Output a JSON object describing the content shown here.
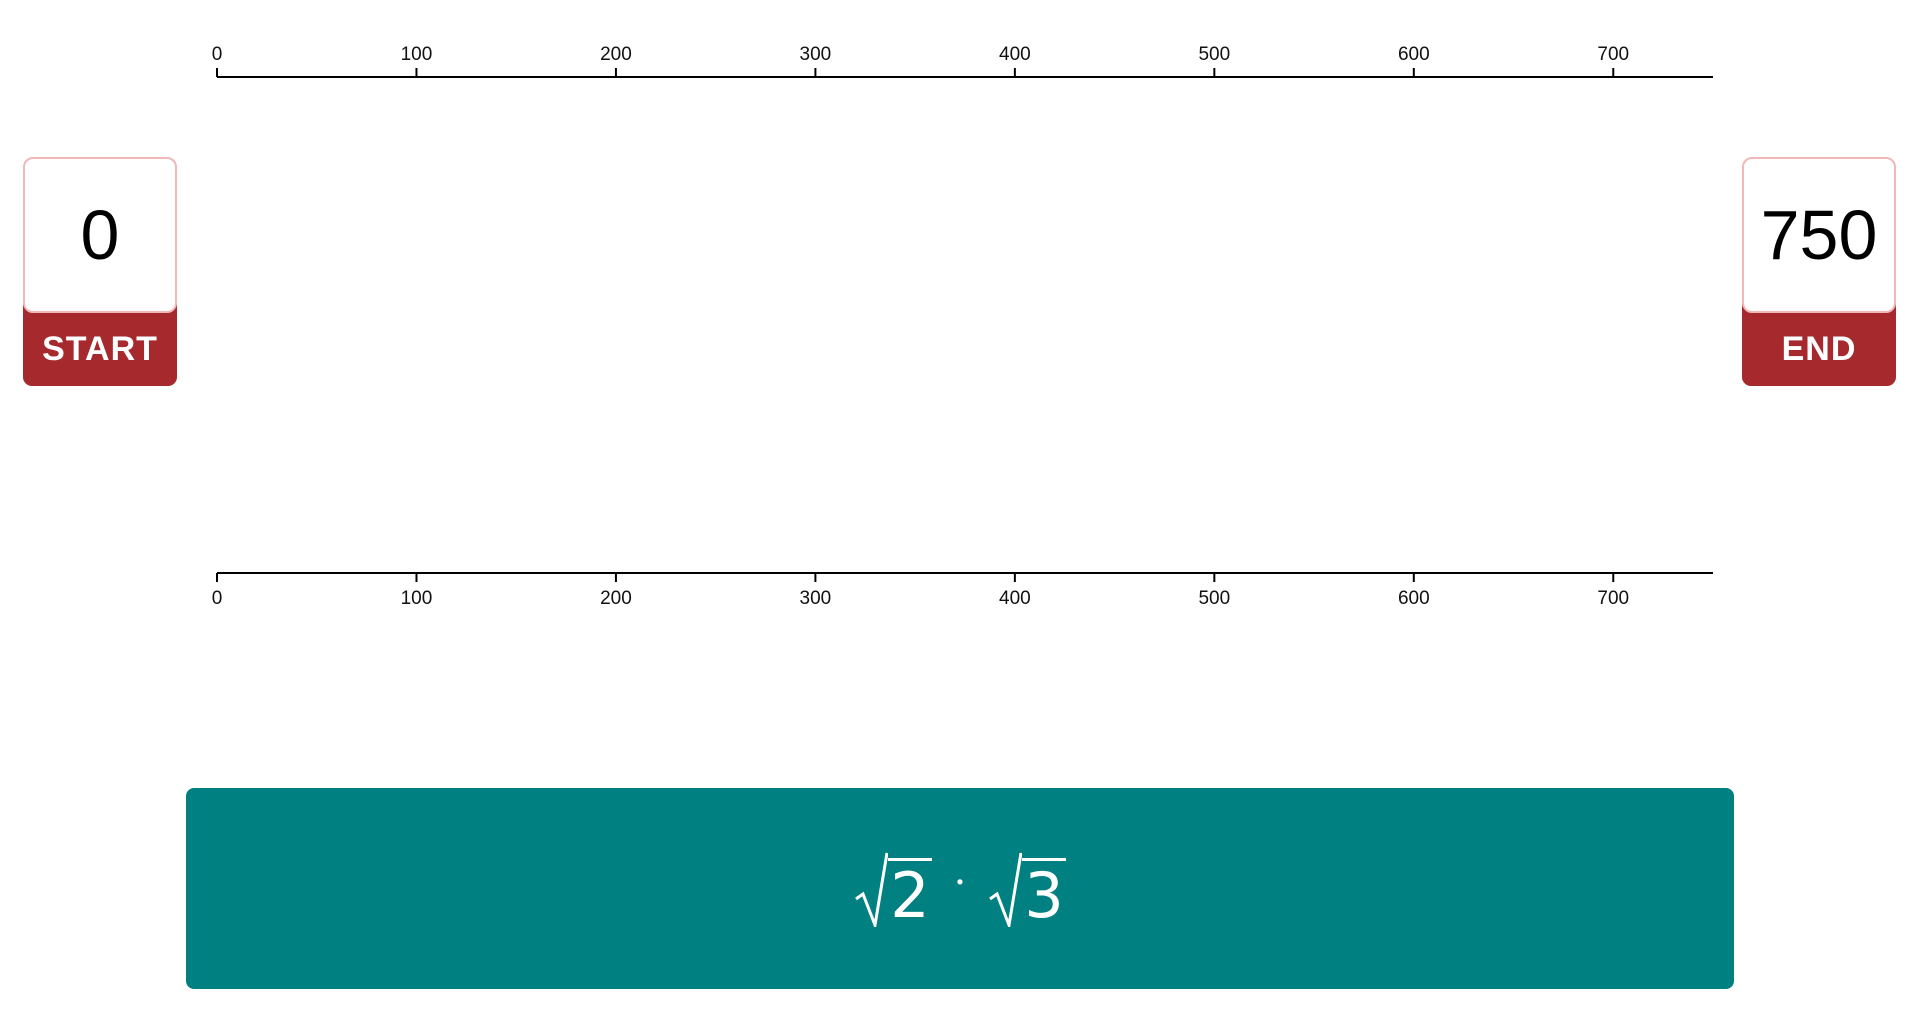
{
  "number_line": {
    "min": 0,
    "max": 750,
    "tick_labels": [
      "0",
      "100",
      "200",
      "300",
      "400",
      "500",
      "600",
      "700"
    ]
  },
  "start": {
    "value": "0",
    "label": "START"
  },
  "end": {
    "value": "750",
    "label": "END"
  },
  "expression": {
    "radicand_1": "2",
    "operator": "·",
    "radicand_2": "3"
  },
  "colors": {
    "bound_label_bg": "#a62a2d",
    "bound_border": "#f2b8b8",
    "expression_bg": "#008080"
  }
}
